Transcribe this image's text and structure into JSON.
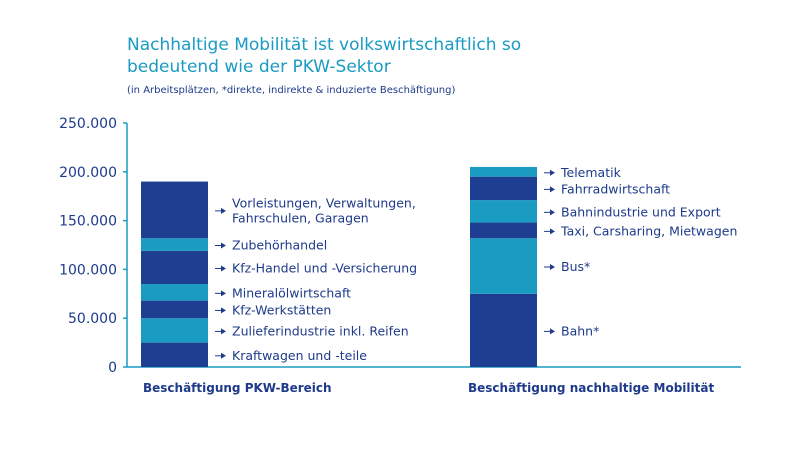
{
  "chart_data": {
    "type": "bar",
    "stacked": true,
    "title_lines": [
      "Nachhaltige Mobilität ist volkswirtschaftlich so",
      "bedeutend wie der PKW-Sektor"
    ],
    "subtitle": "(in Arbeitsplätzen, *direkte, indirekte & induzierte Beschäftigung)",
    "xlabel": "",
    "ylabel": "",
    "ylim": [
      0,
      250000
    ],
    "yticks": [
      0,
      50000,
      100000,
      150000,
      200000,
      250000
    ],
    "ytick_labels": [
      "0",
      "50.000",
      "100.000",
      "150.000",
      "200.000",
      "250.000"
    ],
    "grid": false,
    "legend": "none",
    "colors": {
      "dark": "#1e3f91",
      "light": "#1a9bc2",
      "text": "#1e3a8a",
      "axis": "#1a9bc2"
    },
    "categories": [
      {
        "name": "Beschäftigung PKW-Bereich",
        "segments": [
          {
            "label": "Kraftwagen und -teile",
            "value": 25000,
            "tone": "dark"
          },
          {
            "label": "Zulieferindustrie inkl. Reifen",
            "value": 25000,
            "tone": "light"
          },
          {
            "label": "Kfz-Werkstätten",
            "value": 18000,
            "tone": "dark"
          },
          {
            "label": "Mineralölwirtschaft",
            "value": 17000,
            "tone": "light"
          },
          {
            "label": "Kfz-Handel und -Versicherung",
            "value": 34000,
            "tone": "dark"
          },
          {
            "label": "Zubehörhandel",
            "value": 13000,
            "tone": "light"
          },
          {
            "label": "Vorleistungen, Verwaltungen, Fahrschulen, Garagen",
            "label_lines": [
              "Vorleistungen, Verwaltungen,",
              "Fahrschulen, Garagen"
            ],
            "value": 58000,
            "tone": "dark"
          }
        ]
      },
      {
        "name": "Beschäftigung nachhaltige Mobilität",
        "segments": [
          {
            "label": "Bahn*",
            "value": 75000,
            "tone": "dark"
          },
          {
            "label": "Bus*",
            "value": 57000,
            "tone": "light"
          },
          {
            "label": "Taxi, Carsharing, Mietwagen",
            "value": 16000,
            "tone": "dark"
          },
          {
            "label": "Bahnindustrie und Export",
            "value": 23000,
            "tone": "light"
          },
          {
            "label": "Fahrradwirtschaft",
            "value": 24000,
            "tone": "dark"
          },
          {
            "label": "Telematik",
            "value": 10000,
            "tone": "light"
          }
        ]
      }
    ]
  }
}
